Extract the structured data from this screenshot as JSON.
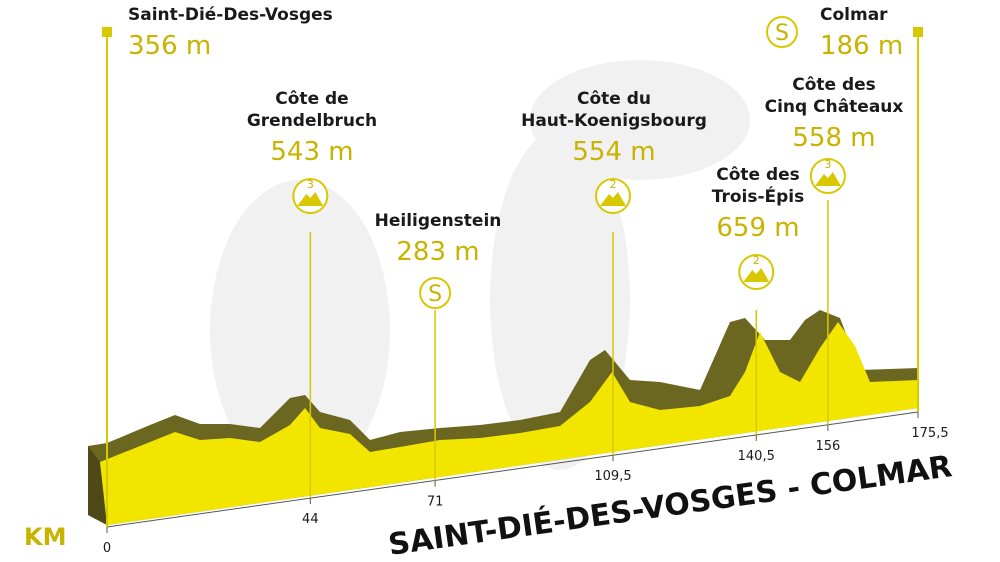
{
  "title": "SAINT-DIÉ-DES-VOSGES - COLMAR",
  "axis_label": "KM",
  "points": [
    {
      "km": 0,
      "lines": [
        "Saint-Dié-Des-Vosges"
      ],
      "altitude": 356,
      "altitude_label": "356 m",
      "kind": "start"
    },
    {
      "km": 44,
      "lines": [
        "Côte de",
        "Grendelbruch"
      ],
      "altitude": 543,
      "altitude_label": "543 m",
      "kind": "climb",
      "category": 3
    },
    {
      "km": 71,
      "lines": [
        "Heiligenstein"
      ],
      "altitude": 283,
      "altitude_label": "283 m",
      "kind": "sprint",
      "icon": "S"
    },
    {
      "km": {
        "value": 109.5,
        "label": "109,5"
      },
      "lines": [
        "Côte du",
        "Haut-Koenigsbourg"
      ],
      "altitude": 554,
      "altitude_label": "554 m",
      "kind": "climb",
      "category": 2
    },
    {
      "km": {
        "value": 140.5,
        "label": "140,5"
      },
      "lines": [
        "Côte des",
        "Trois-Épis"
      ],
      "altitude": 659,
      "altitude_label": "659 m",
      "kind": "climb",
      "category": 2
    },
    {
      "km": 156,
      "lines": [
        "Côte des",
        "Cinq Châteaux"
      ],
      "altitude": 558,
      "altitude_label": "558 m",
      "kind": "climb",
      "category": 3
    },
    {
      "km": {
        "value": 175.5,
        "label": "175,5"
      },
      "lines": [
        "Colmar"
      ],
      "altitude": 186,
      "altitude_label": "186 m",
      "kind": "finish",
      "icon": "S"
    }
  ]
}
